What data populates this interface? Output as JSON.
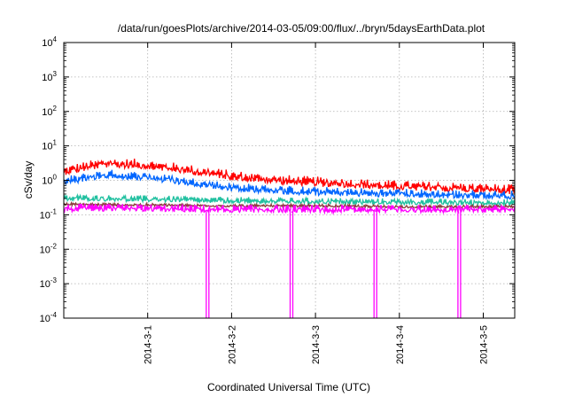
{
  "chart_data": {
    "type": "line",
    "title": "/data/run/goesPlots/archive/2014-03-05/09:00/flux/../bryn/5daysEarthData.plot",
    "xlabel": "Coordinated Universal Time (UTC)",
    "ylabel": "cSv/day",
    "yscale": "log",
    "ylim": [
      0.0001,
      10000
    ],
    "y_ticks": [
      {
        "value": 0.0001,
        "base": "10",
        "exp": "-4"
      },
      {
        "value": 0.001,
        "base": "10",
        "exp": "-3"
      },
      {
        "value": 0.01,
        "base": "10",
        "exp": "-2"
      },
      {
        "value": 0.1,
        "base": "10",
        "exp": "-1"
      },
      {
        "value": 1,
        "base": "10",
        "exp": "0"
      },
      {
        "value": 10,
        "base": "10",
        "exp": "1"
      },
      {
        "value": 100,
        "base": "10",
        "exp": "2"
      },
      {
        "value": 1000,
        "base": "10",
        "exp": "3"
      },
      {
        "value": 10000,
        "base": "10",
        "exp": "4"
      }
    ],
    "xlim": [
      "2014-02-28T00:00",
      "2014-03-05T09:00"
    ],
    "x_ticks": [
      "2014-3-1",
      "2014-3-2",
      "2014-3-3",
      "2014-3-4",
      "2014-3-5"
    ],
    "x_tick_dates": [
      "2014-03-01T00:00",
      "2014-03-02T00:00",
      "2014-03-03T00:00",
      "2014-03-04T00:00",
      "2014-03-05T00:00"
    ],
    "grid": true,
    "legend": "none",
    "series": [
      {
        "color": "#ff0000",
        "noise": 0.28,
        "x": [
          "2014-02-28T00:00",
          "2014-02-28T12:00",
          "2014-03-01T00:00",
          "2014-03-01T12:00",
          "2014-03-02T00:00",
          "2014-03-02T12:00",
          "2014-03-03T00:00",
          "2014-03-03T12:00",
          "2014-03-04T00:00",
          "2014-03-04T12:00",
          "2014-03-05T00:00",
          "2014-03-05T09:00"
        ],
        "y": [
          1.8,
          3.0,
          2.7,
          1.9,
          1.3,
          1.0,
          0.85,
          0.75,
          0.65,
          0.6,
          0.55,
          0.5
        ]
      },
      {
        "color": "#0066ff",
        "noise": 0.25,
        "x": [
          "2014-02-28T00:00",
          "2014-02-28T12:00",
          "2014-03-01T00:00",
          "2014-03-01T12:00",
          "2014-03-02T00:00",
          "2014-03-02T12:00",
          "2014-03-03T00:00",
          "2014-03-03T12:00",
          "2014-03-04T00:00",
          "2014-03-04T12:00",
          "2014-03-05T00:00",
          "2014-03-05T09:00"
        ],
        "y": [
          0.9,
          1.45,
          1.2,
          0.85,
          0.6,
          0.5,
          0.45,
          0.42,
          0.4,
          0.38,
          0.36,
          0.35
        ]
      },
      {
        "color": "#20c0a0",
        "noise": 0.18,
        "x": [
          "2014-02-28T00:00",
          "2014-03-01T00:00",
          "2014-03-02T00:00",
          "2014-03-03T00:00",
          "2014-03-04T00:00",
          "2014-03-05T00:00",
          "2014-03-05T09:00"
        ],
        "y": [
          0.3,
          0.28,
          0.25,
          0.24,
          0.23,
          0.22,
          0.22
        ]
      },
      {
        "color": "#8b3a3a",
        "noise": 0.08,
        "x": [
          "2014-02-28T00:00",
          "2014-03-01T00:00",
          "2014-03-02T00:00",
          "2014-03-03T00:00",
          "2014-03-04T00:00",
          "2014-03-05T00:00",
          "2014-03-05T09:00"
        ],
        "y": [
          0.2,
          0.19,
          0.18,
          0.18,
          0.17,
          0.17,
          0.17
        ]
      },
      {
        "color": "#ff00ff",
        "noise": 0.22,
        "dips": [
          "2014-03-01T17:00",
          "2014-03-02T17:00",
          "2014-03-03T17:00",
          "2014-03-04T17:00"
        ],
        "x": [
          "2014-02-28T00:00",
          "2014-03-01T00:00",
          "2014-03-02T00:00",
          "2014-03-03T00:00",
          "2014-03-04T00:00",
          "2014-03-05T00:00",
          "2014-03-05T09:00"
        ],
        "y": [
          0.15,
          0.15,
          0.14,
          0.14,
          0.14,
          0.14,
          0.14
        ]
      }
    ]
  }
}
